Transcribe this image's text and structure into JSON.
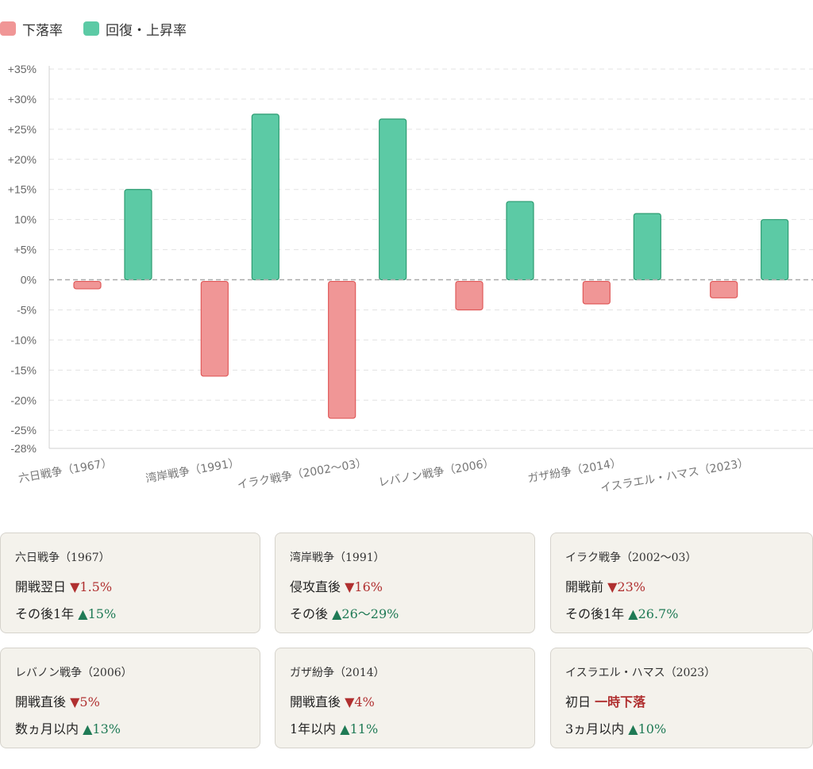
{
  "legend": {
    "fall": {
      "label": "下落率",
      "color": "#f09696"
    },
    "rise": {
      "label": "回復・上昇率",
      "color": "#5ccaa5"
    }
  },
  "chart_data": {
    "type": "bar",
    "categories": [
      "六日戦争（1967）",
      "湾岸戦争（1991）",
      "イラク戦争（2002〜03）",
      "レバノン戦争（2006）",
      "ガザ紛争（2014）",
      "イスラエル・ハマス（2023）"
    ],
    "series": [
      {
        "name": "下落率",
        "values": [
          -1.5,
          -16,
          -23,
          -5,
          -4,
          -3
        ],
        "color": "#f09696",
        "stroke": "#e05a5a"
      },
      {
        "name": "回復・上昇率",
        "values": [
          15,
          27.5,
          26.7,
          13,
          11,
          10
        ],
        "color": "#5ccaa5",
        "stroke": "#2e9c72"
      }
    ],
    "y_ticks": [
      "+35%",
      "+30%",
      "+25%",
      "+20%",
      "+15%",
      "10%",
      "+5%",
      "0%",
      "-5%",
      "-10%",
      "-15%",
      "-20%",
      "-25%",
      "-28%"
    ],
    "y_tick_values": [
      35,
      30,
      25,
      20,
      15,
      10,
      5,
      0,
      -5,
      -10,
      -15,
      -20,
      -25,
      -28
    ],
    "ylim": [
      -28,
      35
    ],
    "grid": true,
    "legend_position": "top-left"
  },
  "cards": [
    {
      "title": "六日戦争（1967）",
      "line1": {
        "label": "開戦翌日 ",
        "value": "▼1.5%"
      },
      "line2": {
        "label": "その後1年 ",
        "value": "▲15%"
      }
    },
    {
      "title": "湾岸戦争（1991）",
      "line1": {
        "label": "侵攻直後 ",
        "value": "▼16%"
      },
      "line2": {
        "label": "その後 ",
        "value": "▲26〜29%"
      }
    },
    {
      "title": "イラク戦争（2002〜03）",
      "line1": {
        "label": "開戦前 ",
        "value": "▼23%"
      },
      "line2": {
        "label": "その後1年 ",
        "value": "▲26.7%"
      }
    },
    {
      "title": "レバノン戦争（2006）",
      "line1": {
        "label": "開戦直後 ",
        "value": "▼5%"
      },
      "line2": {
        "label": "数ヵ月以内 ",
        "value": "▲13%"
      }
    },
    {
      "title": "ガザ紛争（2014）",
      "line1": {
        "label": "開戦直後 ",
        "value": "▼4%"
      },
      "line2": {
        "label": "1年以内 ",
        "value": "▲11%"
      }
    },
    {
      "title": "イスラエル・ハマス（2023）",
      "line1": {
        "label": "初日 ",
        "value": "一時下落"
      },
      "line2": {
        "label": "3ヵ月以内 ",
        "value": "▲10%"
      }
    }
  ]
}
